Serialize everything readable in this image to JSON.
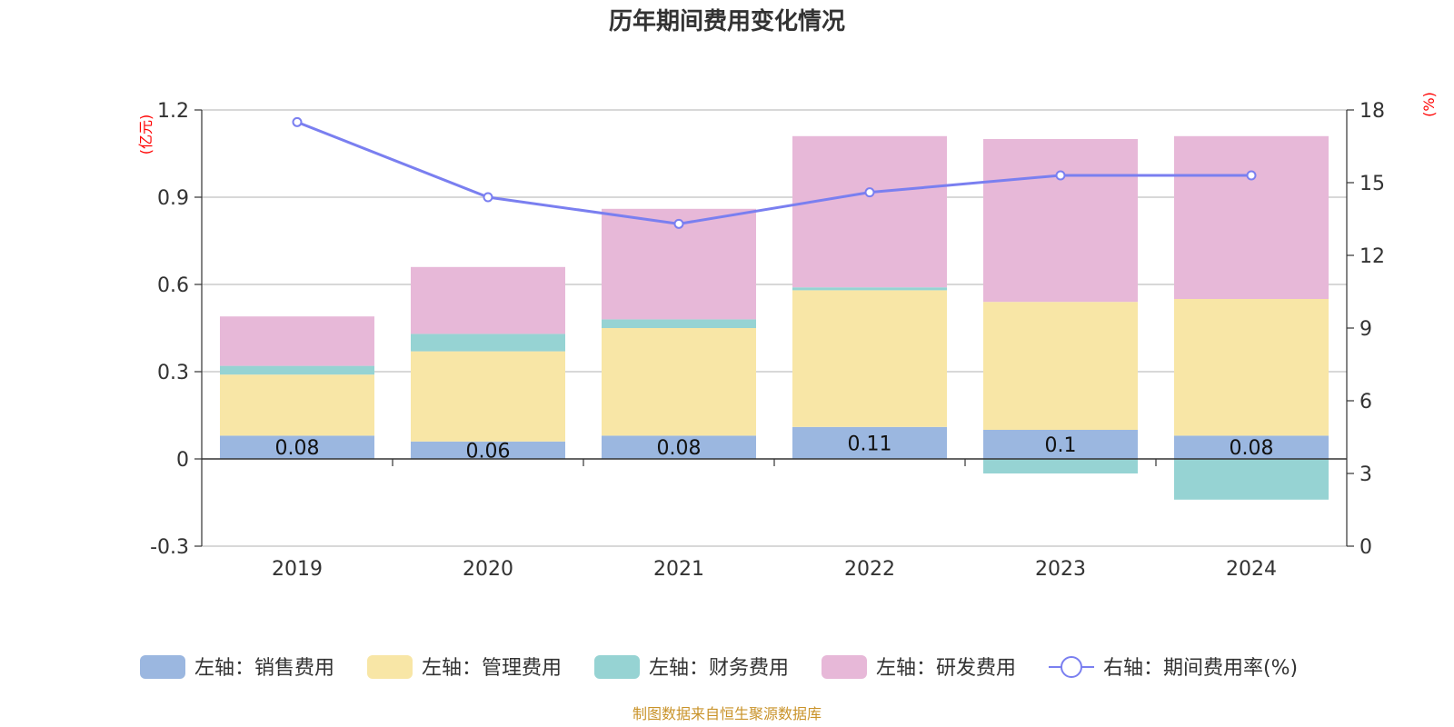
{
  "chart_data": {
    "type": "bar",
    "title": "历年期间费用变化情况",
    "left_axis_unit": "(亿元)",
    "right_axis_unit": "(%)",
    "categories": [
      "2019",
      "2020",
      "2021",
      "2022",
      "2023",
      "2024"
    ],
    "stacked": true,
    "left_ylim": [
      -0.3,
      1.2
    ],
    "left_ticks": [
      "1.2",
      "0.9",
      "0.6",
      "0.3",
      "0",
      "-0.3"
    ],
    "right_ylim": [
      0,
      18
    ],
    "right_ticks": [
      "18",
      "15",
      "12",
      "9",
      "6",
      "3",
      "0"
    ],
    "grid": true,
    "legend_position": "bottom",
    "series": [
      {
        "name": "左轴：销售费用",
        "axis": "left",
        "color": "#9bb7e0",
        "values": [
          0.08,
          0.06,
          0.08,
          0.11,
          0.1,
          0.08
        ],
        "labels": [
          "0.08",
          "0.06",
          "0.08",
          "0.11",
          "0.1",
          "0.08"
        ]
      },
      {
        "name": "左轴：管理费用",
        "axis": "left",
        "color": "#f8e6a6",
        "values": [
          0.21,
          0.31,
          0.37,
          0.47,
          0.44,
          0.47
        ]
      },
      {
        "name": "左轴：财务费用",
        "axis": "left",
        "color": "#96d3d3",
        "values": [
          0.03,
          0.06,
          0.03,
          0.01,
          -0.05,
          -0.14
        ]
      },
      {
        "name": "左轴：研发费用",
        "axis": "left",
        "color": "#e7b8d8",
        "values": [
          0.17,
          0.23,
          0.38,
          0.52,
          0.56,
          0.56
        ]
      },
      {
        "name": "右轴：期间费用率(%)",
        "axis": "right",
        "type": "line",
        "color": "#7a7ff0",
        "values": [
          17.5,
          14.4,
          13.3,
          14.6,
          15.3,
          15.3
        ]
      }
    ],
    "source": "制图数据来自恒生聚源数据库"
  }
}
